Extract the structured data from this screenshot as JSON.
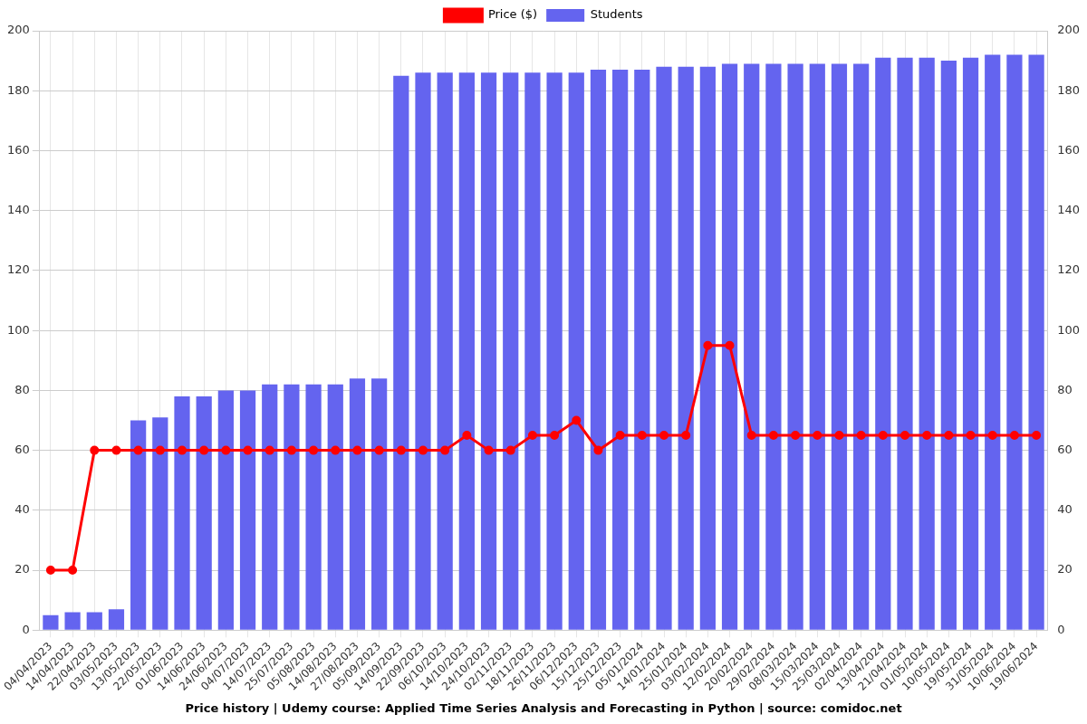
{
  "chart_data": {
    "type": "bar",
    "title": "Price history | Udemy course: Applied Time Series Analysis and Forecasting in Python | source: comidoc.net",
    "categories": [
      "04/04/2023",
      "14/04/2023",
      "22/04/2023",
      "03/05/2023",
      "13/05/2023",
      "22/05/2023",
      "01/06/2023",
      "14/06/2023",
      "24/06/2023",
      "04/07/2023",
      "14/07/2023",
      "25/07/2023",
      "05/08/2023",
      "14/08/2023",
      "27/08/2023",
      "05/09/2023",
      "14/09/2023",
      "22/09/2023",
      "06/10/2023",
      "14/10/2023",
      "24/10/2023",
      "02/11/2023",
      "18/11/2023",
      "26/11/2023",
      "06/12/2023",
      "15/12/2023",
      "25/12/2023",
      "05/01/2024",
      "14/01/2024",
      "25/01/2024",
      "03/02/2024",
      "12/02/2024",
      "20/02/2024",
      "29/02/2024",
      "08/03/2024",
      "15/03/2024",
      "25/03/2024",
      "02/04/2024",
      "13/04/2024",
      "21/04/2024",
      "01/05/2024",
      "10/05/2024",
      "19/05/2024",
      "31/05/2024",
      "10/06/2024",
      "19/06/2024"
    ],
    "series": [
      {
        "name": "Price ($)",
        "type": "line",
        "color": "#ff0000",
        "marker": "circle",
        "axis": "y2",
        "values": [
          20,
          20,
          60,
          60,
          60,
          60,
          60,
          60,
          60,
          60,
          60,
          60,
          60,
          60,
          60,
          60,
          60,
          60,
          60,
          65,
          60,
          60,
          65,
          65,
          70,
          60,
          65,
          65,
          65,
          65,
          95,
          95,
          65,
          65,
          65,
          65,
          65,
          65,
          65,
          65,
          65,
          65,
          65,
          65,
          65,
          65
        ]
      },
      {
        "name": "Students",
        "type": "bar",
        "color": "#6464ef",
        "values": [
          5,
          6,
          6,
          7,
          70,
          71,
          78,
          78,
          80,
          80,
          82,
          82,
          82,
          82,
          84,
          84,
          185,
          186,
          186,
          186,
          186,
          186,
          186,
          186,
          186,
          187,
          187,
          187,
          188,
          188,
          188,
          189,
          189,
          189,
          189,
          189,
          189,
          189,
          191,
          191,
          191,
          190,
          191,
          192,
          192,
          192
        ]
      }
    ],
    "ylim": [
      0,
      200
    ],
    "yticks": [
      0,
      20,
      40,
      60,
      80,
      100,
      120,
      140,
      160,
      180,
      200
    ],
    "y2lim": [
      0,
      200
    ],
    "y2ticks": [
      0,
      20,
      40,
      60,
      80,
      100,
      120,
      140,
      160,
      180,
      200
    ],
    "grid": true,
    "legend": "top"
  }
}
